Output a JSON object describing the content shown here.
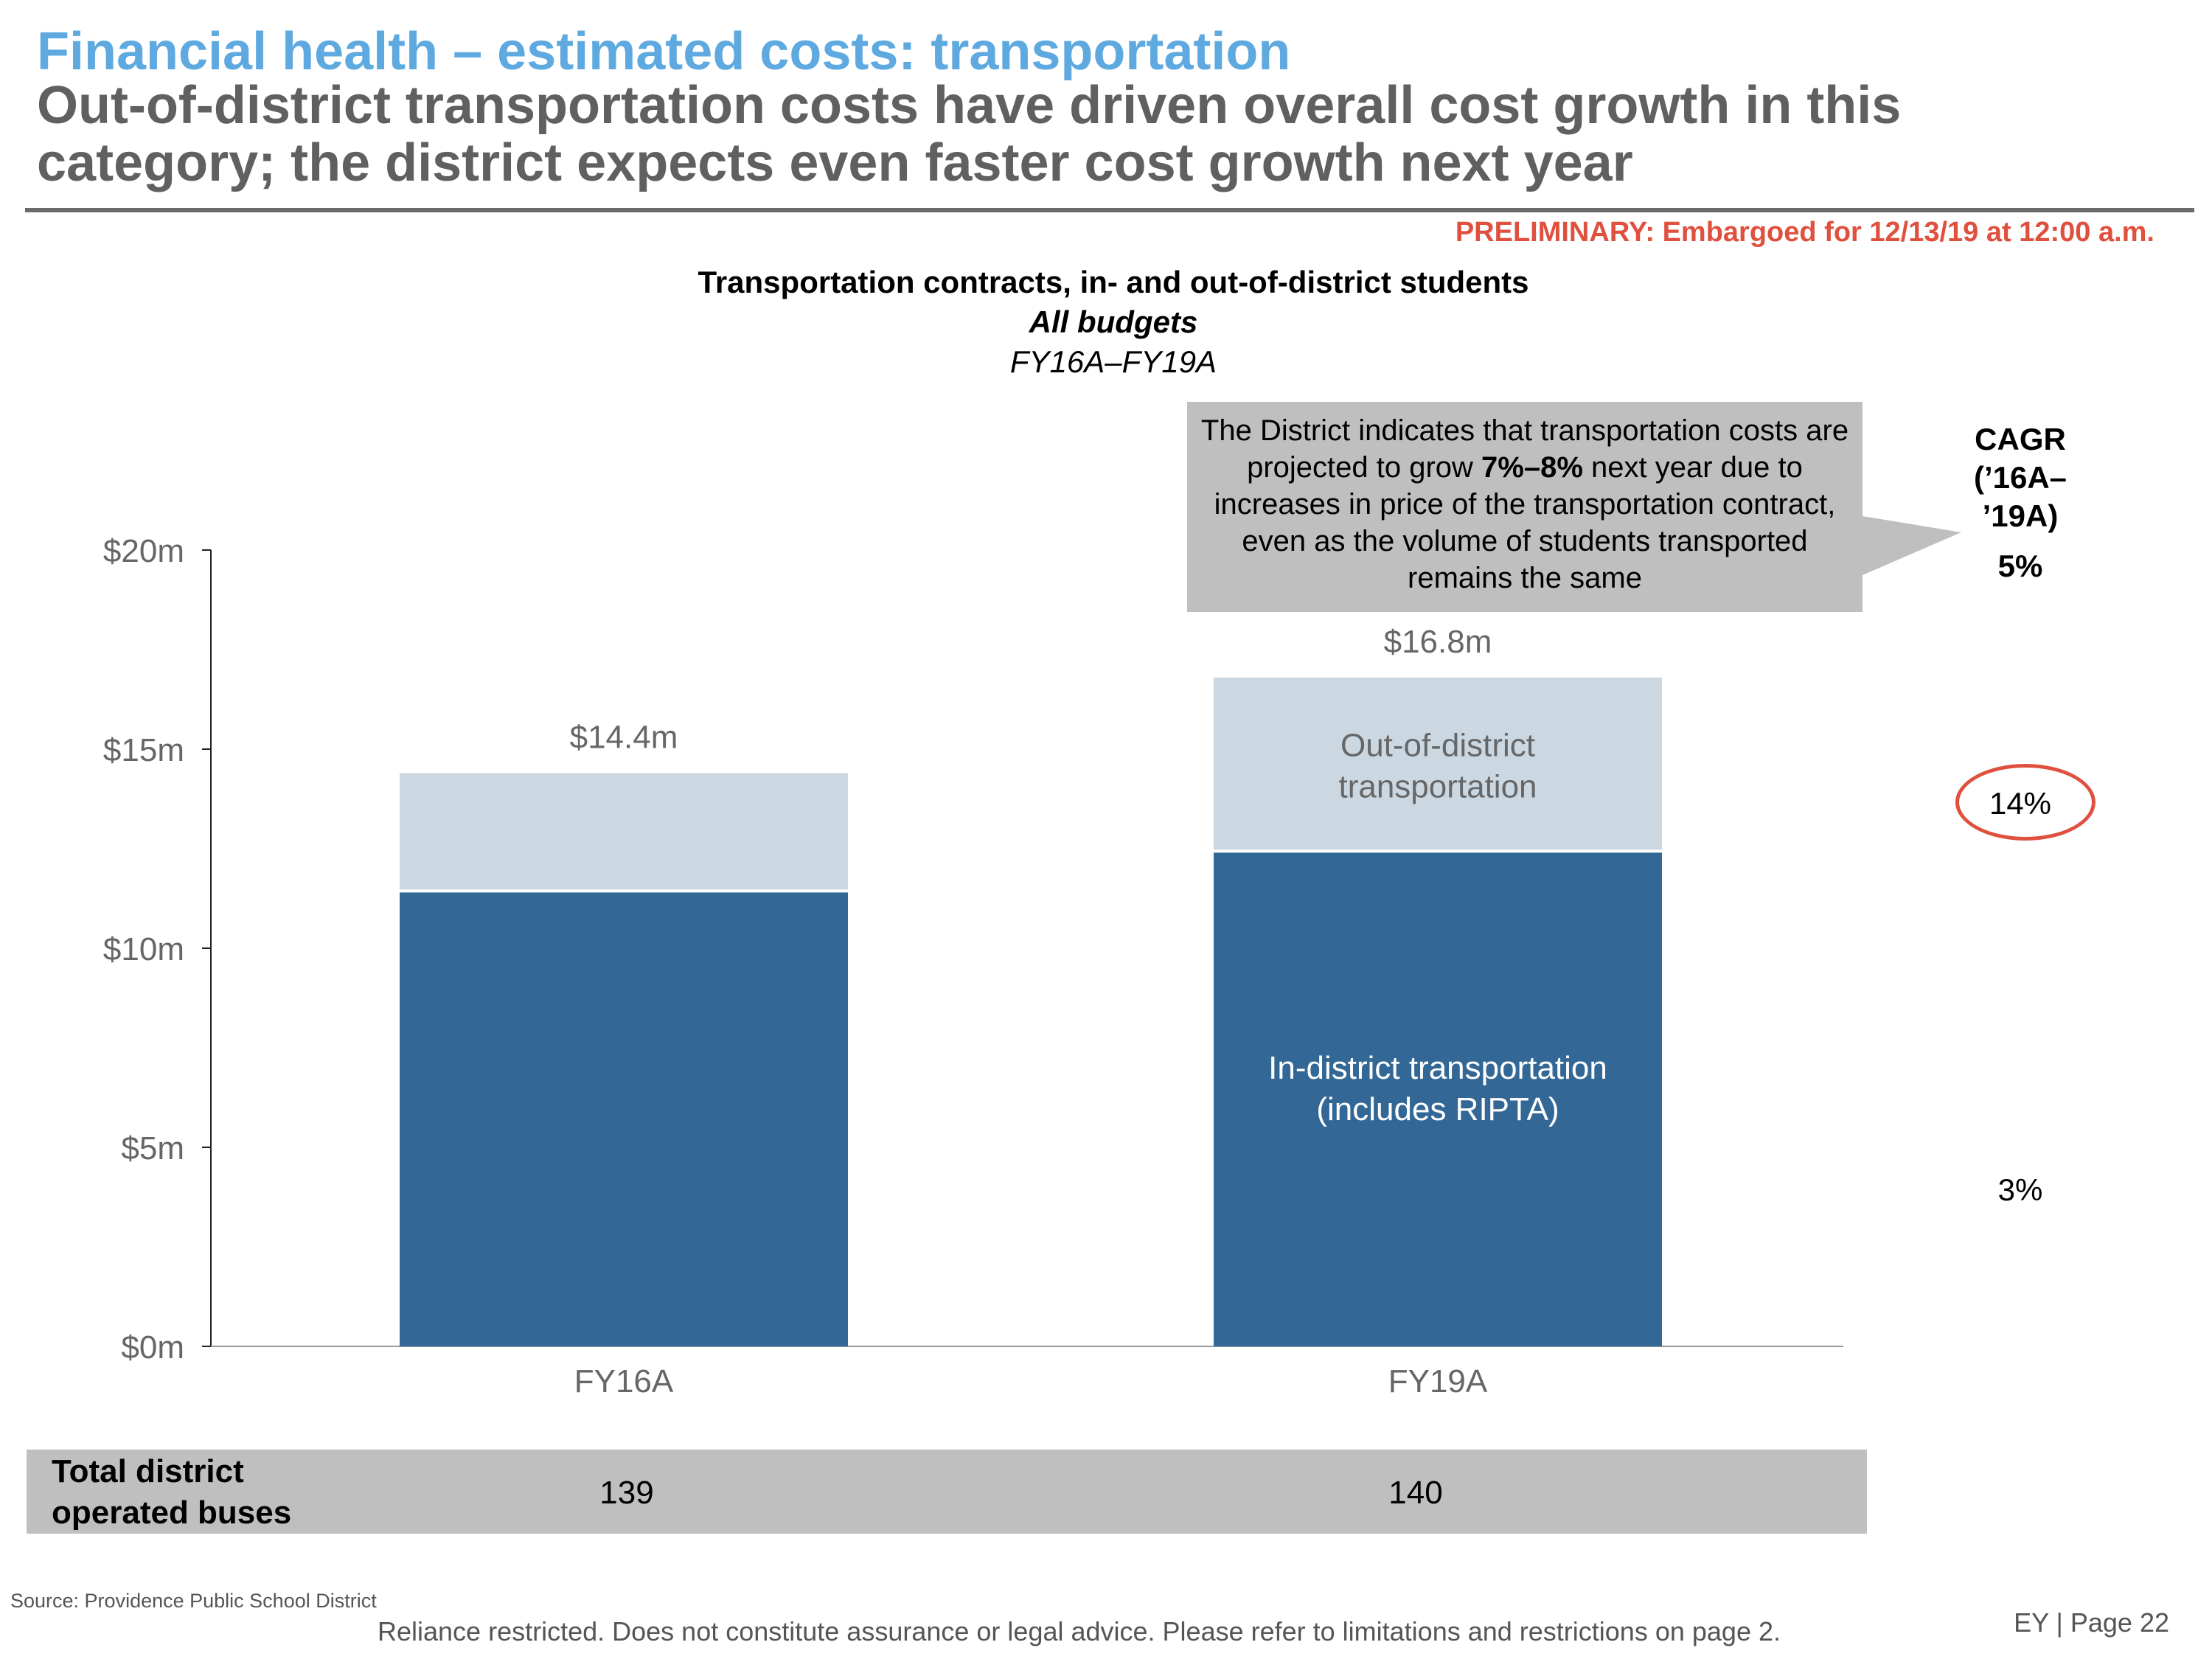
{
  "header": {
    "title": "Financial health – estimated costs: transportation",
    "subtitle": "Out-of-district transportation costs have driven overall cost growth in this category; the district expects even faster cost growth next year",
    "preliminary_notice": "PRELIMINARY: Embargoed for 12/13/19 at 12:00 a.m."
  },
  "callout": {
    "text_before": "The District indicates that transportation costs are projected to grow ",
    "text_bold": "7%–8%",
    "text_after": " next year due to increases in price of the transportation contract, even as the volume of students transported remains the same"
  },
  "cagr": {
    "heading_line1": "CAGR",
    "heading_line2": "(’16A–",
    "heading_line3": "’19A)",
    "total": "5%",
    "out_of_district": "14%",
    "in_district": "3%"
  },
  "bus_table": {
    "label_line1": "Total district",
    "label_line2": "operated buses",
    "values": [
      "139",
      "140"
    ]
  },
  "footer": {
    "source": "Source: Providence Public School District",
    "disclaimer": "Reliance restricted. Does not constitute assurance or legal advice. Please refer to limitations and restrictions on page 2.",
    "page": "EY | Page 22"
  },
  "colors": {
    "title_blue": "#5ea9e0",
    "subtitle_gray": "#606060",
    "preliminary_red": "#e0503e",
    "in_district_bar": "#336896",
    "out_of_district_bar": "#cbd8e2",
    "callout_gray": "#bfbfbf"
  },
  "chart_data": {
    "type": "bar",
    "stacked": true,
    "title": "Transportation contracts, in- and out-of-district students",
    "subtitle": "All budgets",
    "period": "FY16A–FY19A",
    "categories": [
      "FY16A",
      "FY19A"
    ],
    "series": [
      {
        "name": "In-district transportation (includes RIPTA)",
        "values": [
          11.4,
          12.4
        ],
        "color": "#336896"
      },
      {
        "name": "Out-of-district transportation",
        "values": [
          3.0,
          4.4
        ],
        "color": "#cbd8e2"
      }
    ],
    "totals": [
      14.4,
      16.8
    ],
    "total_labels": [
      "$14.4m",
      "$16.8m"
    ],
    "segment_labels": {
      "out_of_district_line1": "Out-of-district",
      "out_of_district_line2": "transportation",
      "in_district_line1": "In-district transportation",
      "in_district_line2": "(includes RIPTA)"
    },
    "yticks": [
      0,
      5,
      10,
      15,
      20
    ],
    "ytick_labels": [
      "$0m",
      "$5m",
      "$10m",
      "$15m",
      "$20m"
    ],
    "ylim": [
      0,
      20
    ],
    "xlabel": "",
    "ylabel": "",
    "grid": false,
    "legend": "none (inline labels)"
  }
}
